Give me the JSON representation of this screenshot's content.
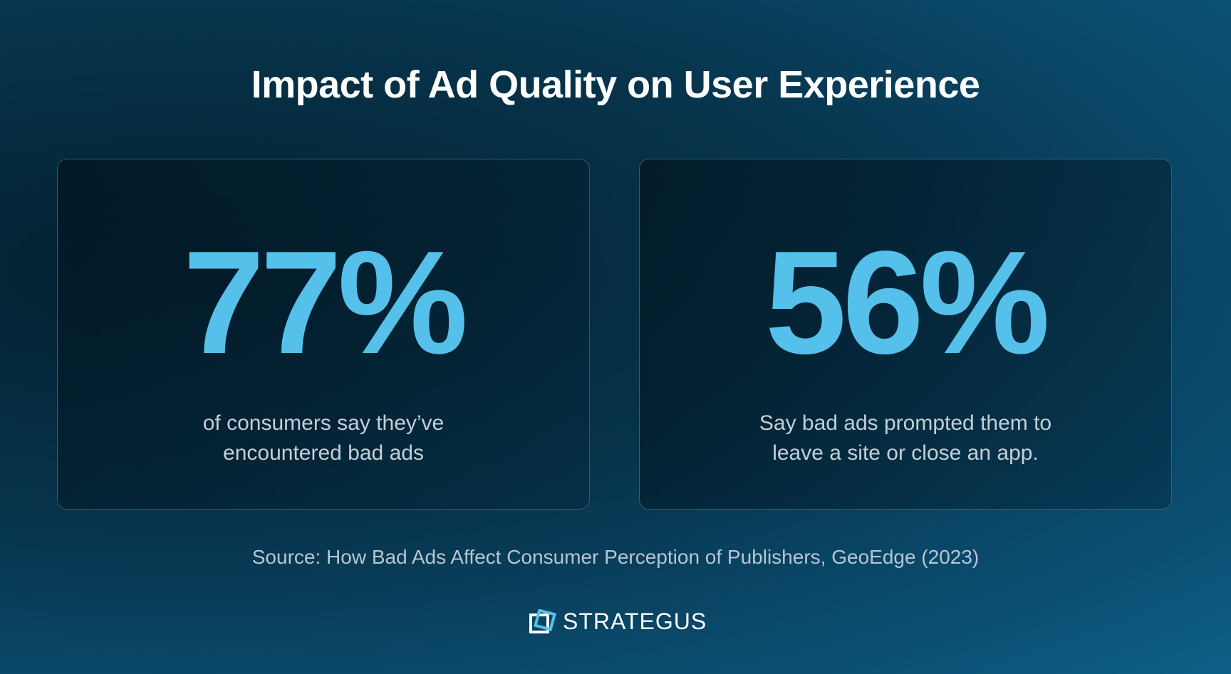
{
  "header": {
    "title": "Impact of Ad Quality on User Experience"
  },
  "cards": [
    {
      "stat": "77%",
      "caption": [
        "of consumers say they’ve",
        "encountered bad ads"
      ]
    },
    {
      "stat": "56%",
      "caption": [
        "Say bad ads prompted them to",
        "leave a site or close an app."
      ]
    }
  ],
  "footer": {
    "source": "Source: How Bad Ads Affect Consumer Perception of Publishers, GeoEdge (2023)",
    "logo": "STRATEGUS"
  }
}
